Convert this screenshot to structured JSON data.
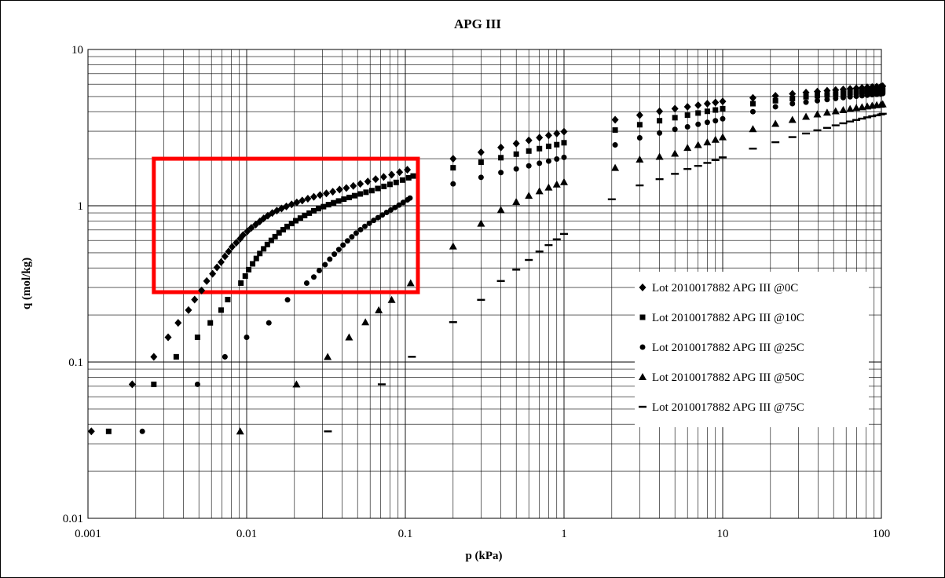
{
  "chart_data": {
    "type": "scatter",
    "title": "APG III",
    "xlabel": "p (kPa)",
    "ylabel": "q (mol/kg)",
    "xscale": "log",
    "yscale": "log",
    "xlim": [
      0.001,
      100
    ],
    "ylim": [
      0.01,
      10
    ],
    "xticks": [
      "0.001",
      "0.01",
      "0.1",
      "1",
      "10",
      "100"
    ],
    "yticks": [
      "0.01",
      "0.1",
      "1",
      "10"
    ],
    "grid": true,
    "legend_position": "right",
    "highlight_box": {
      "x": [
        0.0026,
        0.12
      ],
      "y": [
        0.28,
        2.0
      ],
      "color": "#ff0000"
    },
    "series": [
      {
        "name": "Lot 2010017882 APG III @0C",
        "marker": "diamond",
        "points": [
          [
            0.00105,
            0.036
          ],
          [
            0.0019,
            0.072
          ],
          [
            0.0026,
            0.108
          ],
          [
            0.0032,
            0.144
          ],
          [
            0.0037,
            0.178
          ],
          [
            0.0043,
            0.215
          ],
          [
            0.0047,
            0.251
          ],
          [
            0.0052,
            0.287
          ],
          [
            0.0056,
            0.33
          ],
          [
            0.0061,
            0.367
          ],
          [
            0.0065,
            0.403
          ],
          [
            0.0069,
            0.436
          ],
          [
            0.0073,
            0.474
          ],
          [
            0.0077,
            0.51
          ],
          [
            0.0081,
            0.546
          ],
          [
            0.0086,
            0.58
          ],
          [
            0.0091,
            0.615
          ],
          [
            0.0095,
            0.65
          ],
          [
            0.0101,
            0.686
          ],
          [
            0.0107,
            0.722
          ],
          [
            0.0114,
            0.758
          ],
          [
            0.0121,
            0.793
          ],
          [
            0.0128,
            0.83
          ],
          [
            0.0136,
            0.864
          ],
          [
            0.0145,
            0.898
          ],
          [
            0.0155,
            0.93
          ],
          [
            0.0166,
            0.96
          ],
          [
            0.0178,
            0.99
          ],
          [
            0.0192,
            1.02
          ],
          [
            0.0207,
            1.05
          ],
          [
            0.0224,
            1.08
          ],
          [
            0.0243,
            1.11
          ],
          [
            0.0265,
            1.14
          ],
          [
            0.029,
            1.17
          ],
          [
            0.0318,
            1.2
          ],
          [
            0.0349,
            1.23
          ],
          [
            0.0385,
            1.27
          ],
          [
            0.0425,
            1.3
          ],
          [
            0.047,
            1.34
          ],
          [
            0.052,
            1.38
          ],
          [
            0.058,
            1.43
          ],
          [
            0.065,
            1.48
          ],
          [
            0.073,
            1.53
          ],
          [
            0.082,
            1.58
          ],
          [
            0.092,
            1.64
          ],
          [
            0.103,
            1.7
          ],
          [
            0.2,
            2.0
          ],
          [
            0.3,
            2.2
          ],
          [
            0.4,
            2.36
          ],
          [
            0.5,
            2.5
          ],
          [
            0.6,
            2.62
          ],
          [
            0.7,
            2.73
          ],
          [
            0.8,
            2.82
          ],
          [
            0.9,
            2.9
          ],
          [
            1.0,
            2.98
          ],
          [
            2.1,
            3.55
          ],
          [
            3.0,
            3.8
          ],
          [
            4.0,
            4.02
          ],
          [
            5.0,
            4.18
          ],
          [
            6.0,
            4.3
          ],
          [
            7.0,
            4.4
          ],
          [
            8.0,
            4.5
          ],
          [
            9.0,
            4.58
          ],
          [
            10.0,
            4.65
          ],
          [
            15.5,
            4.9
          ],
          [
            21.5,
            5.05
          ],
          [
            27.5,
            5.2
          ],
          [
            33.5,
            5.3
          ],
          [
            39.5,
            5.38
          ],
          [
            45.5,
            5.45
          ],
          [
            51.5,
            5.5
          ],
          [
            57.5,
            5.55
          ],
          [
            63.5,
            5.6
          ],
          [
            69.5,
            5.64
          ],
          [
            75.5,
            5.68
          ],
          [
            81.5,
            5.72
          ],
          [
            87.5,
            5.75
          ],
          [
            93.5,
            5.78
          ],
          [
            99.5,
            5.8
          ],
          [
            102.0,
            5.82
          ]
        ]
      },
      {
        "name": "Lot 2010017882 APG III @10C",
        "marker": "square",
        "points": [
          [
            0.00135,
            0.036
          ],
          [
            0.0026,
            0.072
          ],
          [
            0.0036,
            0.108
          ],
          [
            0.0049,
            0.144
          ],
          [
            0.0059,
            0.178
          ],
          [
            0.0069,
            0.215
          ],
          [
            0.0076,
            0.251
          ],
          [
            0.0092,
            0.32
          ],
          [
            0.0098,
            0.355
          ],
          [
            0.0103,
            0.39
          ],
          [
            0.0109,
            0.425
          ],
          [
            0.0115,
            0.46
          ],
          [
            0.0121,
            0.495
          ],
          [
            0.0128,
            0.53
          ],
          [
            0.0135,
            0.565
          ],
          [
            0.0143,
            0.6
          ],
          [
            0.0151,
            0.634
          ],
          [
            0.016,
            0.67
          ],
          [
            0.017,
            0.703
          ],
          [
            0.018,
            0.737
          ],
          [
            0.0192,
            0.77
          ],
          [
            0.0204,
            0.802
          ],
          [
            0.0218,
            0.834
          ],
          [
            0.0232,
            0.866
          ],
          [
            0.0248,
            0.897
          ],
          [
            0.0265,
            0.928
          ],
          [
            0.0284,
            0.958
          ],
          [
            0.0305,
            0.987
          ],
          [
            0.0328,
            1.016
          ],
          [
            0.0353,
            1.045
          ],
          [
            0.038,
            1.073
          ],
          [
            0.041,
            1.102
          ],
          [
            0.0443,
            1.13
          ],
          [
            0.0479,
            1.16
          ],
          [
            0.052,
            1.19
          ],
          [
            0.0565,
            1.22
          ],
          [
            0.0615,
            1.25
          ],
          [
            0.067,
            1.29
          ],
          [
            0.0733,
            1.33
          ],
          [
            0.08,
            1.37
          ],
          [
            0.0875,
            1.41
          ],
          [
            0.096,
            1.46
          ],
          [
            0.105,
            1.51
          ],
          [
            0.112,
            1.55
          ],
          [
            0.2,
            1.75
          ],
          [
            0.3,
            1.9
          ],
          [
            0.4,
            2.03
          ],
          [
            0.5,
            2.14
          ],
          [
            0.6,
            2.24
          ],
          [
            0.7,
            2.32
          ],
          [
            0.8,
            2.4
          ],
          [
            0.9,
            2.46
          ],
          [
            1.0,
            2.53
          ],
          [
            2.1,
            3.05
          ],
          [
            3.0,
            3.3
          ],
          [
            4.0,
            3.5
          ],
          [
            5.0,
            3.66
          ],
          [
            6.0,
            3.8
          ],
          [
            7.0,
            3.92
          ],
          [
            8.0,
            4.02
          ],
          [
            9.0,
            4.1
          ],
          [
            10.0,
            4.18
          ],
          [
            15.5,
            4.5
          ],
          [
            21.5,
            4.7
          ],
          [
            27.5,
            4.85
          ],
          [
            33.5,
            4.98
          ],
          [
            39.5,
            5.06
          ],
          [
            45.5,
            5.12
          ],
          [
            51.5,
            5.18
          ],
          [
            57.5,
            5.23
          ],
          [
            63.5,
            5.28
          ],
          [
            69.5,
            5.32
          ],
          [
            75.5,
            5.36
          ],
          [
            81.5,
            5.39
          ],
          [
            87.5,
            5.42
          ],
          [
            93.5,
            5.45
          ],
          [
            99.5,
            5.47
          ],
          [
            102.0,
            5.49
          ]
        ]
      },
      {
        "name": "Lot 2010017882 APG III @25C",
        "marker": "circle",
        "points": [
          [
            0.0022,
            0.036
          ],
          [
            0.0049,
            0.072
          ],
          [
            0.0073,
            0.108
          ],
          [
            0.01,
            0.144
          ],
          [
            0.0138,
            0.178
          ],
          [
            0.0181,
            0.25
          ],
          [
            0.0239,
            0.32
          ],
          [
            0.0265,
            0.35
          ],
          [
            0.0287,
            0.385
          ],
          [
            0.0312,
            0.42
          ],
          [
            0.0334,
            0.455
          ],
          [
            0.0357,
            0.49
          ],
          [
            0.0381,
            0.525
          ],
          [
            0.0405,
            0.56
          ],
          [
            0.0432,
            0.596
          ],
          [
            0.046,
            0.632
          ],
          [
            0.049,
            0.668
          ],
          [
            0.0522,
            0.703
          ],
          [
            0.0556,
            0.738
          ],
          [
            0.0593,
            0.772
          ],
          [
            0.0632,
            0.806
          ],
          [
            0.0673,
            0.84
          ],
          [
            0.0716,
            0.873
          ],
          [
            0.0762,
            0.906
          ],
          [
            0.081,
            0.94
          ],
          [
            0.086,
            0.975
          ],
          [
            0.0913,
            1.01
          ],
          [
            0.097,
            1.05
          ],
          [
            0.103,
            1.09
          ],
          [
            0.107,
            1.12
          ],
          [
            0.2,
            1.38
          ],
          [
            0.3,
            1.52
          ],
          [
            0.4,
            1.63
          ],
          [
            0.5,
            1.72
          ],
          [
            0.6,
            1.8
          ],
          [
            0.7,
            1.87
          ],
          [
            0.8,
            1.93
          ],
          [
            0.9,
            1.99
          ],
          [
            1.0,
            2.04
          ],
          [
            2.1,
            2.45
          ],
          [
            3.0,
            2.72
          ],
          [
            4.0,
            2.92
          ],
          [
            5.0,
            3.08
          ],
          [
            6.0,
            3.2
          ],
          [
            7.0,
            3.32
          ],
          [
            8.0,
            3.42
          ],
          [
            9.0,
            3.5
          ],
          [
            10.0,
            3.6
          ],
          [
            15.5,
            4.0
          ],
          [
            21.5,
            4.3
          ],
          [
            27.5,
            4.5
          ],
          [
            33.5,
            4.6
          ],
          [
            39.5,
            4.7
          ],
          [
            45.5,
            4.78
          ],
          [
            51.5,
            4.86
          ],
          [
            57.5,
            4.92
          ],
          [
            63.5,
            4.98
          ],
          [
            69.5,
            5.02
          ],
          [
            75.5,
            5.06
          ],
          [
            81.5,
            5.1
          ],
          [
            87.5,
            5.14
          ],
          [
            93.5,
            5.17
          ],
          [
            99.5,
            5.2
          ],
          [
            102.0,
            5.22
          ]
        ]
      },
      {
        "name": "Lot 2010017882 APG III @50C",
        "marker": "triangle",
        "points": [
          [
            0.0091,
            0.036
          ],
          [
            0.0206,
            0.072
          ],
          [
            0.0324,
            0.108
          ],
          [
            0.0442,
            0.144
          ],
          [
            0.056,
            0.18
          ],
          [
            0.068,
            0.215
          ],
          [
            0.082,
            0.25
          ],
          [
            0.108,
            0.32
          ],
          [
            0.2,
            0.55
          ],
          [
            0.3,
            0.77
          ],
          [
            0.4,
            0.94
          ],
          [
            0.5,
            1.06
          ],
          [
            0.6,
            1.16
          ],
          [
            0.7,
            1.24
          ],
          [
            0.8,
            1.31
          ],
          [
            0.9,
            1.37
          ],
          [
            1.0,
            1.42
          ],
          [
            2.1,
            1.75
          ],
          [
            3.0,
            1.98
          ],
          [
            4.0,
            2.06
          ],
          [
            5.0,
            2.16
          ],
          [
            6.0,
            2.35
          ],
          [
            7.0,
            2.45
          ],
          [
            8.0,
            2.55
          ],
          [
            9.0,
            2.65
          ],
          [
            10.0,
            2.75
          ],
          [
            15.5,
            3.1
          ],
          [
            21.5,
            3.35
          ],
          [
            27.5,
            3.55
          ],
          [
            33.5,
            3.72
          ],
          [
            39.5,
            3.85
          ],
          [
            45.5,
            3.95
          ],
          [
            51.5,
            4.03
          ],
          [
            57.5,
            4.1
          ],
          [
            63.5,
            4.17
          ],
          [
            69.5,
            4.23
          ],
          [
            75.5,
            4.28
          ],
          [
            81.5,
            4.33
          ],
          [
            87.5,
            4.37
          ],
          [
            93.5,
            4.41
          ],
          [
            99.5,
            4.44
          ],
          [
            102.0,
            4.47
          ]
        ]
      },
      {
        "name": "Lot 2010017882 APG III @75C",
        "marker": "dash",
        "points": [
          [
            0.0325,
            0.036
          ],
          [
            0.071,
            0.072
          ],
          [
            0.11,
            0.108
          ],
          [
            0.2,
            0.18
          ],
          [
            0.3,
            0.25
          ],
          [
            0.4,
            0.33
          ],
          [
            0.5,
            0.39
          ],
          [
            0.6,
            0.45
          ],
          [
            0.7,
            0.51
          ],
          [
            0.8,
            0.56
          ],
          [
            0.9,
            0.61
          ],
          [
            1.0,
            0.66
          ],
          [
            2.0,
            1.1
          ],
          [
            3.0,
            1.35
          ],
          [
            4.0,
            1.48
          ],
          [
            5.0,
            1.6
          ],
          [
            6.0,
            1.72
          ],
          [
            7.0,
            1.8
          ],
          [
            8.0,
            1.88
          ],
          [
            9.0,
            1.96
          ],
          [
            10.0,
            2.04
          ],
          [
            15.5,
            2.32
          ],
          [
            21.5,
            2.55
          ],
          [
            27.5,
            2.75
          ],
          [
            33.5,
            2.9
          ],
          [
            39.5,
            3.04
          ],
          [
            45.5,
            3.15
          ],
          [
            51.5,
            3.27
          ],
          [
            57.5,
            3.37
          ],
          [
            63.5,
            3.46
          ],
          [
            69.5,
            3.54
          ],
          [
            75.5,
            3.61
          ],
          [
            81.5,
            3.68
          ],
          [
            87.5,
            3.74
          ],
          [
            93.5,
            3.79
          ],
          [
            99.5,
            3.84
          ],
          [
            102.0,
            3.88
          ]
        ]
      }
    ]
  }
}
